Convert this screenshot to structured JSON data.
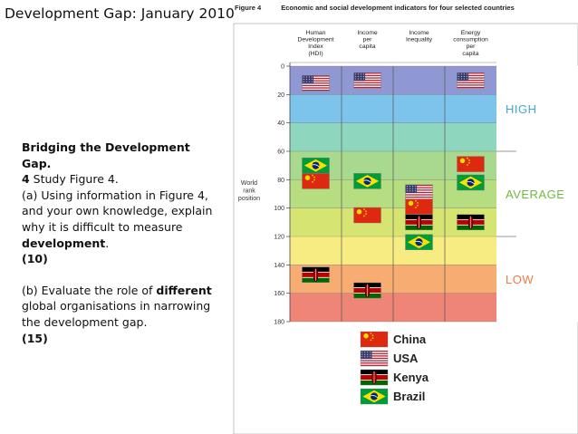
{
  "page_title": "Development Gap: January 2010",
  "question": {
    "heading": "Bridging the Development Gap.",
    "part_a": {
      "intro_bold": "4",
      "intro": " Study Figure 4.",
      "text": "(a) Using information in Figure 4, and your own knowledge, explain why it is difficult to measure ",
      "emph": "development",
      "end": ".",
      "marks": "(10)"
    },
    "part_b": {
      "text": "(b) Evaluate the role of ",
      "emph": "different",
      "rest": " global organisations in narrowing the development gap.",
      "marks": "(15)"
    }
  },
  "figure": {
    "number": "Figure 4",
    "title": "Economic and social development indicators for four selected countries"
  },
  "chart_data": {
    "type": "table",
    "y_label": "World rank position",
    "y_range": [
      0,
      180
    ],
    "y_ticks": [
      "0",
      "20",
      "40",
      "60",
      "80",
      "100",
      "120",
      "140",
      "160",
      "180"
    ],
    "indicators": [
      {
        "key": "hdi",
        "label": "Human Development Index (HDI)"
      },
      {
        "key": "income",
        "label": "Income per capita"
      },
      {
        "key": "inequality",
        "label": "Income Inequality"
      },
      {
        "key": "energy",
        "label": "Energy consumption per capita"
      }
    ],
    "zones": [
      {
        "label": "HIGH",
        "from": 0,
        "to": 60,
        "color": "#41a8d6"
      },
      {
        "label": "AVERAGE",
        "from": 60,
        "to": 120,
        "color": "#72b83e"
      },
      {
        "label": "LOW",
        "from": 120,
        "to": 180,
        "color": "#ed7b47"
      }
    ],
    "bands": [
      {
        "from": 0,
        "to": 20,
        "color": "#8f98d2"
      },
      {
        "from": 20,
        "to": 40,
        "color": "#7cc4ec"
      },
      {
        "from": 40,
        "to": 60,
        "color": "#8fd6bf"
      },
      {
        "from": 60,
        "to": 80,
        "color": "#a9d98e"
      },
      {
        "from": 80,
        "to": 100,
        "color": "#b6dd7f"
      },
      {
        "from": 100,
        "to": 120,
        "color": "#d6e572"
      },
      {
        "from": 120,
        "to": 140,
        "color": "#f7ec82"
      },
      {
        "from": 140,
        "to": 160,
        "color": "#f7ac71"
      },
      {
        "from": 160,
        "to": 180,
        "color": "#ee8577"
      }
    ],
    "points": [
      {
        "country": "USA",
        "indicator": "hdi",
        "rank": 12
      },
      {
        "country": "Brazil",
        "indicator": "hdi",
        "rank": 70
      },
      {
        "country": "China",
        "indicator": "hdi",
        "rank": 81
      },
      {
        "country": "Kenya",
        "indicator": "hdi",
        "rank": 147
      },
      {
        "country": "USA",
        "indicator": "income",
        "rank": 10
      },
      {
        "country": "Brazil",
        "indicator": "income",
        "rank": 81
      },
      {
        "country": "China",
        "indicator": "income",
        "rank": 105
      },
      {
        "country": "Kenya",
        "indicator": "income",
        "rank": 158
      },
      {
        "country": "USA",
        "indicator": "inequality",
        "rank": 89
      },
      {
        "country": "China",
        "indicator": "inequality",
        "rank": 99
      },
      {
        "country": "Kenya",
        "indicator": "inequality",
        "rank": 110
      },
      {
        "country": "Brazil",
        "indicator": "inequality",
        "rank": 124
      },
      {
        "country": "USA",
        "indicator": "energy",
        "rank": 10
      },
      {
        "country": "China",
        "indicator": "energy",
        "rank": 69
      },
      {
        "country": "Brazil",
        "indicator": "energy",
        "rank": 82
      },
      {
        "country": "Kenya",
        "indicator": "energy",
        "rank": 110
      }
    ],
    "legend": [
      {
        "country": "China",
        "label": "China"
      },
      {
        "country": "USA",
        "label": "USA"
      },
      {
        "country": "Kenya",
        "label": "Kenya"
      },
      {
        "country": "Brazil",
        "label": "Brazil"
      }
    ],
    "flag_colors": {
      "China": "#de2910",
      "USA_stripe": "#b22234",
      "USA_canton": "#3c3b6e",
      "Brazil_green": "#009b3a",
      "Brazil_yellow": "#fedf00",
      "Brazil_blue": "#002776",
      "Kenya_red": "#bb0000",
      "Kenya_green": "#006600"
    }
  }
}
